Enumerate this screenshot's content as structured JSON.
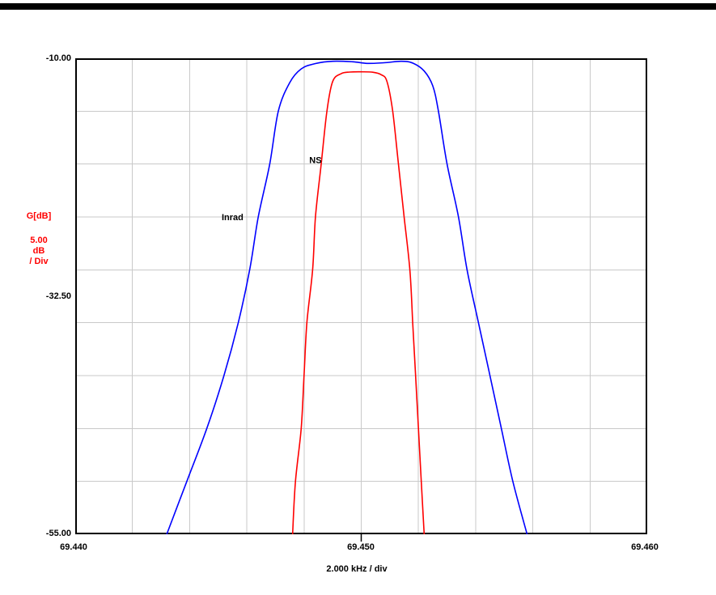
{
  "page": {
    "background": "#ffffff",
    "top_border_color": "#000000"
  },
  "chart_data": {
    "type": "line",
    "title": "",
    "xlabel": "2.000 kHz / div",
    "ylabel_lines": [
      "G[dB]",
      "5.00",
      "dB",
      "/ Div"
    ],
    "ylabel_color": "#ff0000",
    "xlim": [
      69.44,
      69.46
    ],
    "ylim": [
      -55,
      -10
    ],
    "x_divisions": 10,
    "y_divisions": 9,
    "x_div_size": "2.000 kHz",
    "y_div_size": "5.00 dB",
    "grid": true,
    "grid_color": "#c9c9c9",
    "axis_color": "#000000",
    "x_tick_labels": [
      "69.440",
      "69.450",
      "69.460"
    ],
    "y_tick_labels": [
      "-10.00",
      "-32.50",
      "-55.00"
    ],
    "series": [
      {
        "name": "Inrad",
        "color": "#0000ff",
        "x": [
          69.4432,
          69.4439,
          69.4446,
          69.4452,
          69.4457,
          69.4461,
          69.4464,
          69.4468,
          69.4471,
          69.4475,
          69.4479,
          69.4484,
          69.449,
          69.4497,
          69.4502,
          69.4508,
          69.4514,
          69.4518,
          69.4522,
          69.4525,
          69.4527,
          69.453,
          69.4534,
          69.4537,
          69.4541,
          69.4545,
          69.4549,
          69.4553,
          69.4558
        ],
        "y": [
          -55,
          -50,
          -45,
          -40,
          -35,
          -30,
          -25,
          -20,
          -15,
          -12.3,
          -11.0,
          -10.5,
          -10.28,
          -10.33,
          -10.48,
          -10.42,
          -10.28,
          -10.45,
          -11.2,
          -12.6,
          -15.0,
          -20,
          -25,
          -30,
          -35,
          -40,
          -45,
          -50,
          -55
        ]
      },
      {
        "name": "NS",
        "color": "#ff0000",
        "x": [
          69.4476,
          69.4477,
          69.4479,
          69.448,
          69.4481,
          69.4483,
          69.4484,
          69.4486,
          69.4488,
          69.449,
          69.4493,
          69.4496,
          69.45,
          69.4504,
          69.4507,
          69.4509,
          69.4511,
          69.4513,
          69.4515,
          69.4517,
          69.4518,
          69.4519,
          69.452,
          69.4521,
          69.4522
        ],
        "y": [
          -55,
          -50,
          -45,
          -40,
          -35,
          -30,
          -25,
          -20,
          -15,
          -12.2,
          -11.45,
          -11.3,
          -11.28,
          -11.32,
          -11.55,
          -12.2,
          -15,
          -20,
          -25,
          -30,
          -35,
          -40,
          -45,
          -50,
          -55
        ]
      }
    ],
    "annotations": [
      {
        "label": "Inrad",
        "x": 69.4455,
        "y": -25.0,
        "color": "#000000"
      },
      {
        "label": "NS",
        "x": 69.4484,
        "y": -19.6,
        "color": "#000000"
      }
    ]
  }
}
